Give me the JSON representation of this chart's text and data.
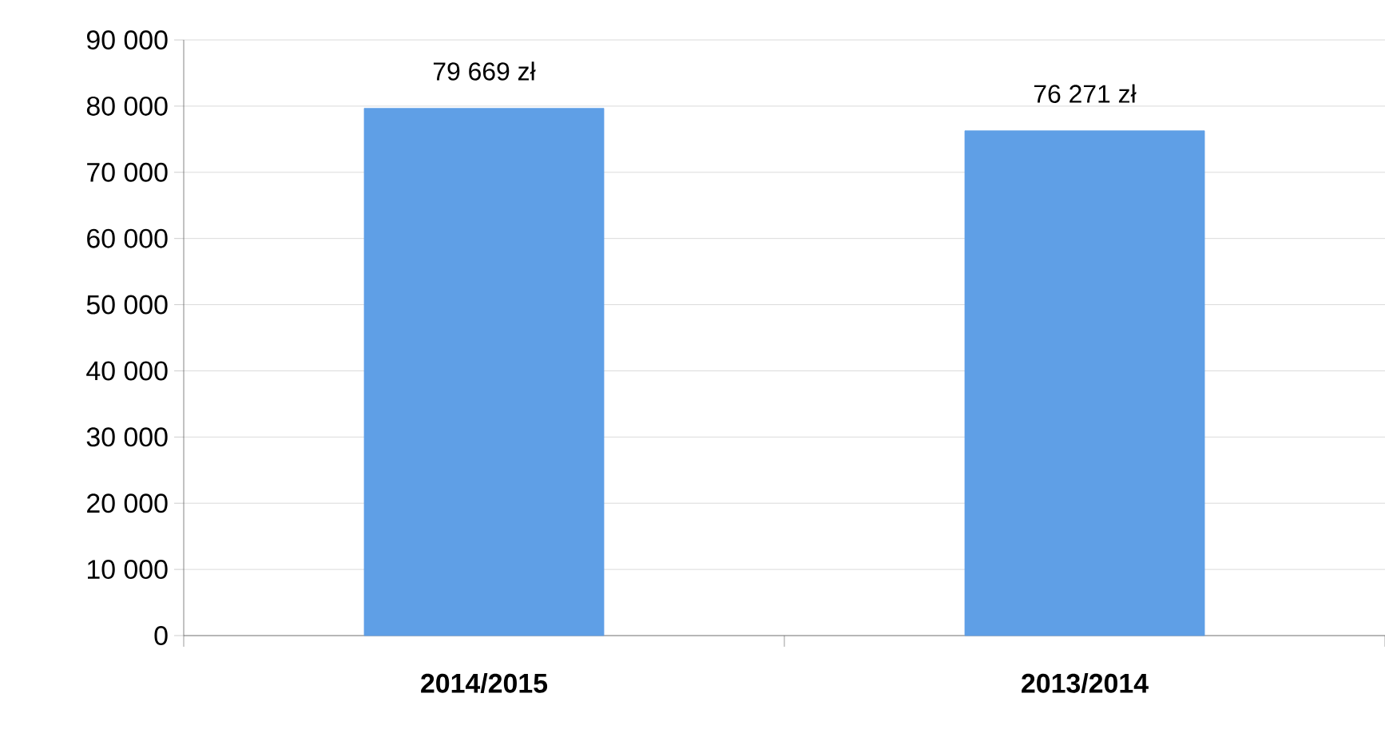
{
  "chart_data": {
    "type": "bar",
    "categories": [
      "2014/2015",
      "2013/2014"
    ],
    "values": [
      79669,
      76271
    ],
    "color": "#5f9fe6",
    "value_labels": [
      "79 669 zł",
      "76 271 zł"
    ],
    "ylim": [
      0,
      90000
    ],
    "yticks": [
      {
        "value": 0,
        "label": "0"
      },
      {
        "value": 10000,
        "label": "10 000"
      },
      {
        "value": 20000,
        "label": "20 000"
      },
      {
        "value": 30000,
        "label": "30 000"
      },
      {
        "value": 40000,
        "label": "40 000"
      },
      {
        "value": 50000,
        "label": "50 000"
      },
      {
        "value": 60000,
        "label": "60 000"
      },
      {
        "value": 70000,
        "label": "70 000"
      },
      {
        "value": 80000,
        "label": "80 000"
      },
      {
        "value": 90000,
        "label": "90 000"
      }
    ],
    "grid": "y"
  }
}
